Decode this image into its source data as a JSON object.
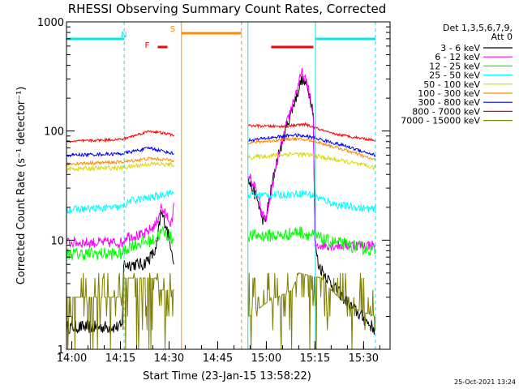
{
  "chart_data": {
    "type": "line",
    "title": "RHESSI Observing Summary Count Rates, Corrected",
    "xlabel": "Start Time (23-Jan-15 13:58:22)",
    "ylabel": "Corrected Count Rate (s⁻¹ detector⁻¹)",
    "y_scale": "log",
    "ylim": [
      1,
      1000
    ],
    "xlim": [
      "13:58:22",
      "15:38:10"
    ],
    "x_ticks": [
      "14:00",
      "14:15",
      "14:30",
      "14:45",
      "15:00",
      "15:15",
      "15:30"
    ],
    "y_ticks": [
      "1",
      "10",
      "100",
      "1000"
    ],
    "legend": {
      "placement": "right",
      "header": [
        "Det 1,3,5,6,7,9,",
        "Att 0"
      ]
    },
    "timestamp": "25-Oct-2021 13:24",
    "markers": [
      {
        "label": "N",
        "color": "#00e5ee",
        "kind": "night",
        "intervals": [
          [
            "13:58:22",
            "14:16:10"
          ],
          [
            "15:15:10",
            "15:33:40"
          ]
        ]
      },
      {
        "label": "F",
        "color": "#ff0000",
        "kind": "flare",
        "intervals": [
          [
            "14:26:30",
            "14:29:30"
          ],
          [
            "15:01:30",
            "15:14:30"
          ]
        ]
      },
      {
        "label": "S",
        "color": "#ff8c00",
        "kind": "saa",
        "intervals": [
          [
            "14:33:50",
            "14:52:20"
          ]
        ]
      }
    ],
    "boundaries": [
      {
        "time": "13:58:22",
        "color": "#00e5ee",
        "style": "solid"
      },
      {
        "time": "14:16:10",
        "color": "#00e5ee",
        "style": "dashed"
      },
      {
        "time": "14:33:50",
        "color": "#ff8c00",
        "style": "solid"
      },
      {
        "time": "14:52:20",
        "color": "#ff8c00",
        "style": "dashed"
      },
      {
        "time": "14:54:20",
        "color": "#00e5ee",
        "style": "solid"
      },
      {
        "time": "15:15:10",
        "color": "#00e5ee",
        "style": "solid"
      },
      {
        "time": "15:33:40",
        "color": "#00e5ee",
        "style": "dashed"
      }
    ],
    "series": [
      {
        "name": "3 - 6 keV",
        "color": "#000000",
        "noise": 0.06,
        "points": [
          [
            "13:58:22",
            1.6
          ],
          [
            "14:15:30",
            1.6
          ],
          [
            "14:16:00",
            6
          ],
          [
            "14:22:00",
            6
          ],
          [
            "14:26:00",
            8
          ],
          [
            "14:27:30",
            18
          ],
          [
            "14:29:00",
            14
          ],
          [
            "14:31:00",
            8
          ],
          [
            "14:31:30",
            6
          ],
          [
            "14:54:30",
            35
          ],
          [
            "14:57:00",
            25
          ],
          [
            "14:58:30",
            17
          ],
          [
            "14:59:30",
            14
          ],
          [
            "15:03:00",
            50
          ],
          [
            "15:07:00",
            130
          ],
          [
            "15:11:00",
            300
          ],
          [
            "15:13:00",
            240
          ],
          [
            "15:14:30",
            150
          ],
          [
            "15:15:00",
            10
          ],
          [
            "15:16:00",
            6
          ],
          [
            "15:20:00",
            4
          ],
          [
            "15:26:00",
            2.5
          ],
          [
            "15:33:40",
            1.5
          ]
        ]
      },
      {
        "name": "6 - 12 keV",
        "color": "#ff00ff",
        "noise": 0.05,
        "points": [
          [
            "13:58:22",
            9.5
          ],
          [
            "14:15:30",
            9.5
          ],
          [
            "14:17:00",
            11
          ],
          [
            "14:22:00",
            11
          ],
          [
            "14:26:00",
            14
          ],
          [
            "14:27:30",
            20
          ],
          [
            "14:29:00",
            17
          ],
          [
            "14:31:00",
            14
          ],
          [
            "14:31:30",
            22
          ],
          [
            "14:54:30",
            40
          ],
          [
            "14:57:00",
            28
          ],
          [
            "14:58:30",
            17
          ],
          [
            "15:00:00",
            16
          ],
          [
            "15:03:30",
            55
          ],
          [
            "15:07:00",
            140
          ],
          [
            "15:11:00",
            340
          ],
          [
            "15:13:00",
            250
          ],
          [
            "15:14:30",
            130
          ],
          [
            "15:15:00",
            9
          ],
          [
            "15:33:40",
            9
          ]
        ]
      },
      {
        "name": "12 - 25 keV",
        "color": "#00ff00",
        "noise": 0.06,
        "points": [
          [
            "13:58:22",
            7.5
          ],
          [
            "14:15:30",
            7.5
          ],
          [
            "14:18:00",
            9
          ],
          [
            "14:25:00",
            10
          ],
          [
            "14:28:00",
            12
          ],
          [
            "14:31:30",
            10
          ],
          [
            "14:54:30",
            11
          ],
          [
            "15:05:00",
            11
          ],
          [
            "15:10:00",
            12
          ],
          [
            "15:14:30",
            11
          ],
          [
            "15:18:00",
            10
          ],
          [
            "15:25:00",
            9
          ],
          [
            "15:33:40",
            8
          ]
        ]
      },
      {
        "name": "25 - 50 keV",
        "color": "#00ffff",
        "noise": 0.035,
        "points": [
          [
            "13:58:22",
            19
          ],
          [
            "14:15:30",
            20
          ],
          [
            "14:18:00",
            23
          ],
          [
            "14:26:00",
            25
          ],
          [
            "14:29:00",
            27
          ],
          [
            "14:31:30",
            27
          ],
          [
            "14:54:30",
            26
          ],
          [
            "15:05:00",
            26
          ],
          [
            "15:12:00",
            27
          ],
          [
            "15:15:00",
            25
          ],
          [
            "15:22:00",
            21
          ],
          [
            "15:33:40",
            19
          ]
        ]
      },
      {
        "name": "50 - 100 keV",
        "color": "#d9d900",
        "noise": 0.02,
        "points": [
          [
            "13:58:22",
            45
          ],
          [
            "14:15:30",
            46
          ],
          [
            "14:24:00",
            50
          ],
          [
            "14:31:30",
            49
          ],
          [
            "14:54:30",
            57
          ],
          [
            "15:08:00",
            62
          ],
          [
            "15:14:00",
            60
          ],
          [
            "15:25:00",
            52
          ],
          [
            "15:33:40",
            46
          ]
        ]
      },
      {
        "name": "100 - 300 keV",
        "color": "#ff8c00",
        "noise": 0.015,
        "points": [
          [
            "13:58:22",
            50
          ],
          [
            "14:15:30",
            52
          ],
          [
            "14:24:00",
            56
          ],
          [
            "14:31:30",
            54
          ],
          [
            "14:54:30",
            78
          ],
          [
            "15:08:00",
            85
          ],
          [
            "15:14:00",
            82
          ],
          [
            "15:25:00",
            66
          ],
          [
            "15:33:40",
            54
          ]
        ]
      },
      {
        "name": "300 - 800 keV",
        "color": "#0000ff",
        "noise": 0.015,
        "points": [
          [
            "13:58:22",
            60
          ],
          [
            "14:15:30",
            62
          ],
          [
            "14:24:00",
            70
          ],
          [
            "14:31:30",
            62
          ],
          [
            "14:54:30",
            82
          ],
          [
            "15:08:00",
            92
          ],
          [
            "15:14:00",
            88
          ],
          [
            "15:25:00",
            72
          ],
          [
            "15:33:40",
            60
          ]
        ]
      },
      {
        "name": "800 - 7000 keV",
        "color": "#ff0000",
        "noise": 0.012,
        "points": [
          [
            "13:58:22",
            80
          ],
          [
            "14:15:30",
            84
          ],
          [
            "14:24:00",
            100
          ],
          [
            "14:31:30",
            92
          ],
          [
            "14:54:30",
            112
          ],
          [
            "15:05:00",
            110
          ],
          [
            "15:12:00",
            115
          ],
          [
            "15:20:00",
            95
          ],
          [
            "15:33:40",
            82
          ]
        ]
      },
      {
        "name": "7000 - 15000 keV",
        "color": "#808000",
        "noise": 0.0,
        "points": [
          [
            "13:58:22",
            3.0
          ],
          [
            "14:15:30",
            3.0
          ],
          [
            "14:16:00",
            4.5
          ],
          [
            "14:26:00",
            4.5
          ],
          [
            "14:27:00",
            3.5
          ],
          [
            "14:31:30",
            3.5
          ],
          [
            "14:54:30",
            2.0
          ],
          [
            "15:01:00",
            2.8
          ],
          [
            "15:08:00",
            3.5
          ],
          [
            "15:10:00",
            5.0
          ],
          [
            "15:17:00",
            4.5
          ],
          [
            "15:20:00",
            3.5
          ],
          [
            "15:25:00",
            2.5
          ],
          [
            "15:33:40",
            2.0
          ]
        ]
      }
    ]
  }
}
